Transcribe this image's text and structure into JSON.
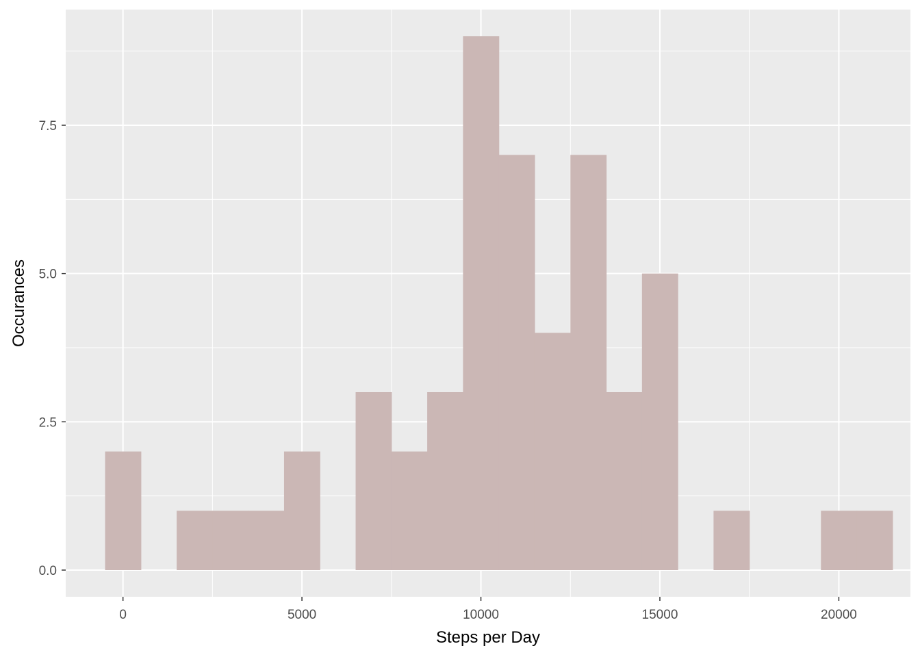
{
  "chart_data": {
    "type": "bar",
    "subtype": "histogram",
    "xlabel": "Steps per Day",
    "ylabel": "Occurances",
    "xlim": [
      -1600,
      22000
    ],
    "ylim": [
      -0.45,
      9.45
    ],
    "x_ticks": [
      {
        "value": 0,
        "label": "0"
      },
      {
        "value": 5000,
        "label": "5000"
      },
      {
        "value": 10000,
        "label": "10000"
      },
      {
        "value": 15000,
        "label": "15000"
      },
      {
        "value": 20000,
        "label": "20000"
      }
    ],
    "y_ticks": [
      {
        "value": 0,
        "label": "0.0"
      },
      {
        "value": 2.5,
        "label": "2.5"
      },
      {
        "value": 5,
        "label": "5.0"
      },
      {
        "value": 7.5,
        "label": "7.5"
      }
    ],
    "x_minor": [
      2500,
      7500,
      12500,
      17500
    ],
    "y_minor": [
      1.25,
      3.75,
      6.25,
      8.75
    ],
    "bin_width": 1000,
    "bins": [
      {
        "center": 0,
        "count": 2
      },
      {
        "center": 1000,
        "count": 0
      },
      {
        "center": 2000,
        "count": 1
      },
      {
        "center": 3000,
        "count": 1
      },
      {
        "center": 4000,
        "count": 1
      },
      {
        "center": 5000,
        "count": 2
      },
      {
        "center": 6000,
        "count": 0
      },
      {
        "center": 7000,
        "count": 3
      },
      {
        "center": 8000,
        "count": 2
      },
      {
        "center": 9000,
        "count": 3
      },
      {
        "center": 10000,
        "count": 9
      },
      {
        "center": 11000,
        "count": 7
      },
      {
        "center": 12000,
        "count": 4
      },
      {
        "center": 13000,
        "count": 7
      },
      {
        "center": 14000,
        "count": 3
      },
      {
        "center": 15000,
        "count": 5
      },
      {
        "center": 16000,
        "count": 0
      },
      {
        "center": 17000,
        "count": 1
      },
      {
        "center": 18000,
        "count": 0
      },
      {
        "center": 19000,
        "count": 0
      },
      {
        "center": 20000,
        "count": 1
      },
      {
        "center": 21000,
        "count": 1
      }
    ],
    "grid": true,
    "legend": "none",
    "colors": {
      "panel": "#ebebeb",
      "grid": "#ffffff",
      "bar": "#cbb7b5",
      "tick_text": "#4d4d4d",
      "tick_mark": "#333333",
      "title_text": "#000000"
    }
  }
}
